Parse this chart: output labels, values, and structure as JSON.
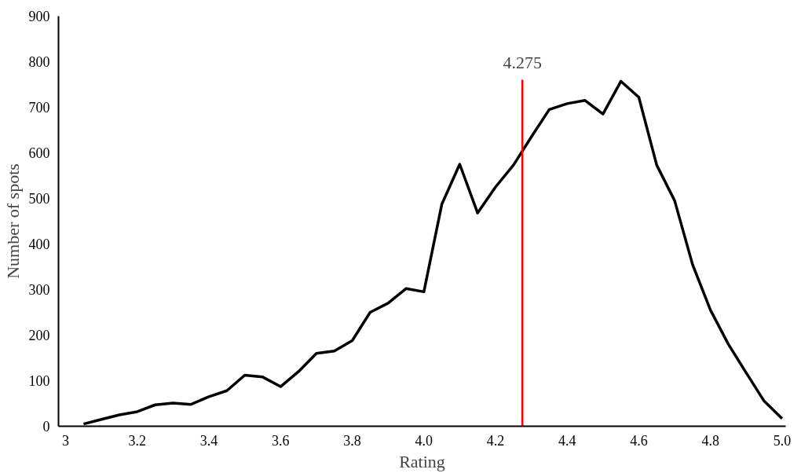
{
  "chart_data": {
    "type": "line",
    "xlabel": "Rating",
    "ylabel": "Number of spots",
    "x": [
      3.05,
      3.1,
      3.15,
      3.2,
      3.25,
      3.3,
      3.35,
      3.4,
      3.45,
      3.5,
      3.55,
      3.6,
      3.65,
      3.7,
      3.75,
      3.8,
      3.85,
      3.9,
      3.95,
      4.0,
      4.05,
      4.1,
      4.15,
      4.2,
      4.25,
      4.3,
      4.35,
      4.4,
      4.45,
      4.5,
      4.55,
      4.6,
      4.65,
      4.7,
      4.75,
      4.8,
      4.85,
      4.9,
      4.95,
      5.0
    ],
    "series": [
      {
        "color": "#000000",
        "values": [
          5,
          15,
          25,
          32,
          47,
          51,
          48,
          65,
          78,
          112,
          108,
          87,
          120,
          160,
          165,
          188,
          250,
          270,
          302,
          295,
          487,
          575,
          468,
          525,
          573,
          635,
          695,
          708,
          715,
          685,
          757,
          722,
          573,
          495,
          355,
          255,
          180,
          117,
          55,
          17
        ]
      }
    ],
    "xlim": [
      2.98,
      5.01
    ],
    "xticks": [
      3,
      {
        "value": 3.2,
        "label": "3.2"
      },
      {
        "value": 3.4,
        "label": "3.4"
      },
      {
        "value": 3.6,
        "label": "3.6"
      },
      {
        "value": 3.8,
        "label": "3.8"
      },
      {
        "value": 4,
        "label": "4.0"
      },
      {
        "value": 4.2,
        "label": "4.2"
      },
      {
        "value": 4.4,
        "label": "4.4"
      },
      {
        "value": 4.6,
        "label": "4.6"
      },
      {
        "value": 4.8,
        "label": "4.8"
      },
      {
        "value": 5,
        "label": "5.0"
      }
    ],
    "ylim": [
      0,
      900
    ],
    "yticks": [
      0,
      100,
      200,
      300,
      400,
      500,
      600,
      700,
      800,
      900
    ],
    "ref_lines": [
      {
        "axis": "x",
        "value": 4.275,
        "label": "4.275",
        "color": "#ff0000"
      }
    ],
    "grid": false,
    "marker": "none",
    "line_style": "solid"
  }
}
